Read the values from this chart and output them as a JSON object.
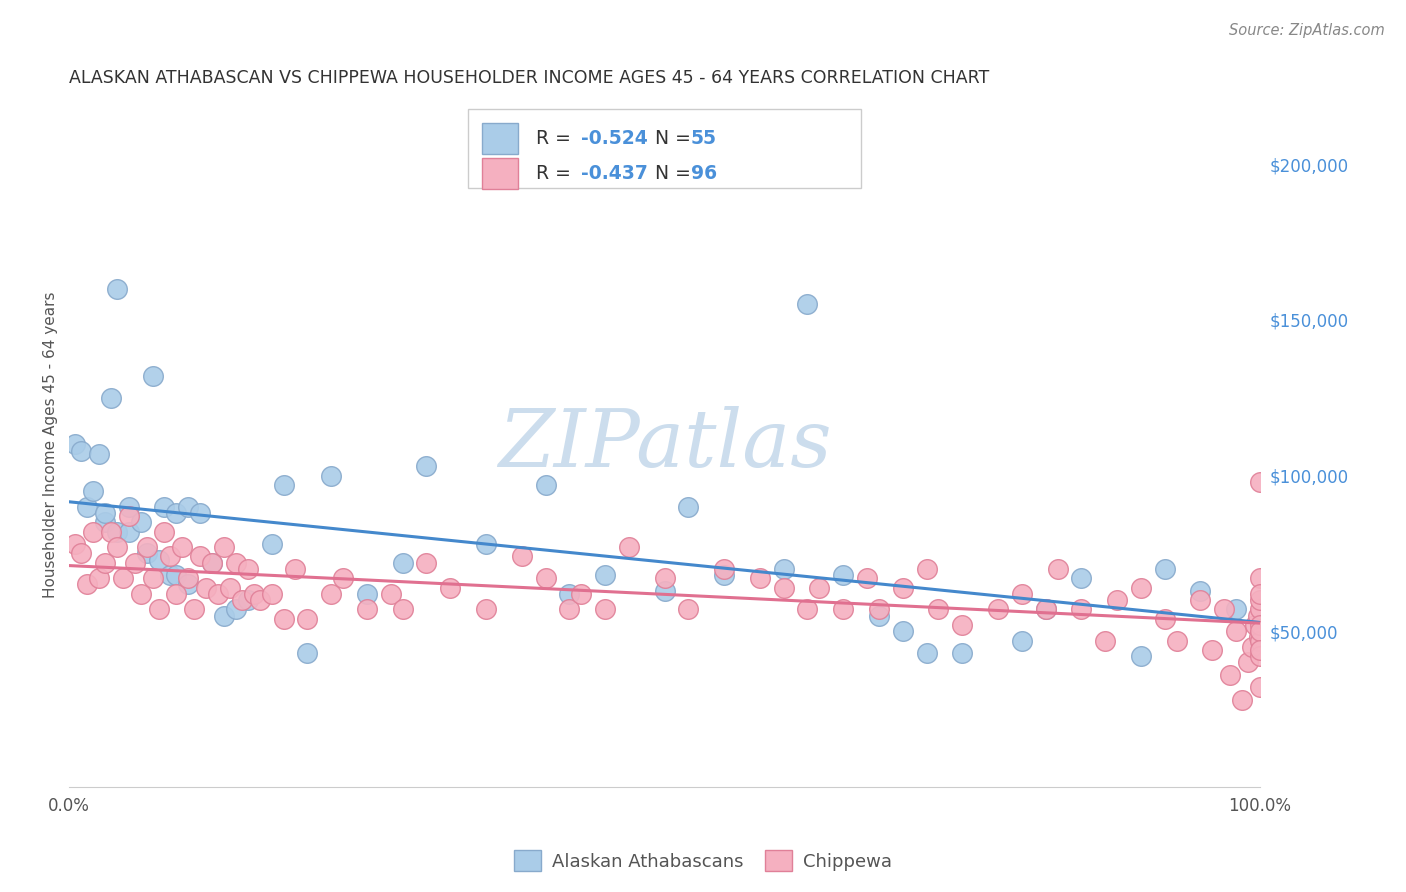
{
  "title": "ALASKAN ATHABASCAN VS CHIPPEWA HOUSEHOLDER INCOME AGES 45 - 64 YEARS CORRELATION CHART",
  "source_text": "Source: ZipAtlas.com",
  "ylabel": "Householder Income Ages 45 - 64 years",
  "ylabel_right_labels": [
    "$200,000",
    "$150,000",
    "$100,000",
    "$50,000"
  ],
  "ylabel_right_values": [
    200000,
    150000,
    100000,
    50000
  ],
  "background_color": "#ffffff",
  "grid_color": "#dddddd",
  "title_color": "#333333",
  "source_color": "#888888",
  "watermark_text": "ZIPatlas",
  "watermark_color": "#ccdded",
  "right_axis_color": "#4a90d9",
  "label_color": "#4a90d9",
  "text_color": "#333333",
  "series": [
    {
      "name": "Alaskan Athabascans",
      "R": -0.524,
      "N": 55,
      "face_color": "#aacce8",
      "edge_color": "#88aacc",
      "line_color": "#4488cc",
      "x": [
        0.005,
        0.01,
        0.015,
        0.02,
        0.025,
        0.03,
        0.03,
        0.035,
        0.04,
        0.04,
        0.05,
        0.05,
        0.06,
        0.065,
        0.07,
        0.075,
        0.08,
        0.085,
        0.09,
        0.09,
        0.1,
        0.1,
        0.11,
        0.12,
        0.13,
        0.14,
        0.15,
        0.17,
        0.18,
        0.2,
        0.22,
        0.25,
        0.28,
        0.3,
        0.35,
        0.4,
        0.42,
        0.45,
        0.5,
        0.52,
        0.55,
        0.6,
        0.62,
        0.65,
        0.68,
        0.7,
        0.72,
        0.75,
        0.8,
        0.82,
        0.85,
        0.9,
        0.92,
        0.95,
        0.98
      ],
      "y": [
        110000,
        108000,
        90000,
        95000,
        107000,
        85000,
        88000,
        125000,
        82000,
        160000,
        82000,
        90000,
        85000,
        75000,
        132000,
        73000,
        90000,
        68000,
        88000,
        68000,
        90000,
        65000,
        88000,
        72000,
        55000,
        57000,
        60000,
        78000,
        97000,
        43000,
        100000,
        62000,
        72000,
        103000,
        78000,
        97000,
        62000,
        68000,
        63000,
        90000,
        68000,
        70000,
        155000,
        68000,
        55000,
        50000,
        43000,
        43000,
        47000,
        57000,
        67000,
        42000,
        70000,
        63000,
        57000
      ]
    },
    {
      "name": "Chippewa",
      "R": -0.437,
      "N": 96,
      "face_color": "#f5b0c0",
      "edge_color": "#e08098",
      "line_color": "#e07090",
      "x": [
        0.005,
        0.01,
        0.015,
        0.02,
        0.025,
        0.03,
        0.035,
        0.04,
        0.045,
        0.05,
        0.055,
        0.06,
        0.065,
        0.07,
        0.075,
        0.08,
        0.085,
        0.09,
        0.095,
        0.1,
        0.105,
        0.11,
        0.115,
        0.12,
        0.125,
        0.13,
        0.135,
        0.14,
        0.145,
        0.15,
        0.155,
        0.16,
        0.17,
        0.18,
        0.19,
        0.2,
        0.22,
        0.23,
        0.25,
        0.27,
        0.28,
        0.3,
        0.32,
        0.35,
        0.38,
        0.4,
        0.42,
        0.43,
        0.45,
        0.47,
        0.5,
        0.52,
        0.55,
        0.58,
        0.6,
        0.62,
        0.63,
        0.65,
        0.67,
        0.68,
        0.7,
        0.72,
        0.73,
        0.75,
        0.78,
        0.8,
        0.82,
        0.83,
        0.85,
        0.87,
        0.88,
        0.9,
        0.92,
        0.93,
        0.95,
        0.96,
        0.97,
        0.975,
        0.98,
        0.985,
        0.99,
        0.993,
        0.996,
        0.998,
        0.999,
        1.0,
        1.0,
        1.0,
        1.0,
        1.0,
        1.0,
        1.0,
        1.0,
        1.0,
        1.0,
        1.0
      ],
      "y": [
        78000,
        75000,
        65000,
        82000,
        67000,
        72000,
        82000,
        77000,
        67000,
        87000,
        72000,
        62000,
        77000,
        67000,
        57000,
        82000,
        74000,
        62000,
        77000,
        67000,
        57000,
        74000,
        64000,
        72000,
        62000,
        77000,
        64000,
        72000,
        60000,
        70000,
        62000,
        60000,
        62000,
        54000,
        70000,
        54000,
        62000,
        67000,
        57000,
        62000,
        57000,
        72000,
        64000,
        57000,
        74000,
        67000,
        57000,
        62000,
        57000,
        77000,
        67000,
        57000,
        70000,
        67000,
        64000,
        57000,
        64000,
        57000,
        67000,
        57000,
        64000,
        70000,
        57000,
        52000,
        57000,
        62000,
        57000,
        70000,
        57000,
        47000,
        60000,
        64000,
        54000,
        47000,
        60000,
        44000,
        57000,
        36000,
        50000,
        28000,
        40000,
        45000,
        52000,
        55000,
        48000,
        98000,
        67000,
        57000,
        47000,
        42000,
        52000,
        60000,
        50000,
        44000,
        62000,
        32000
      ]
    }
  ],
  "xlim": [
    0.0,
    1.0
  ],
  "ylim": [
    0,
    220000
  ],
  "figsize": [
    14.06,
    8.92
  ],
  "dpi": 100
}
